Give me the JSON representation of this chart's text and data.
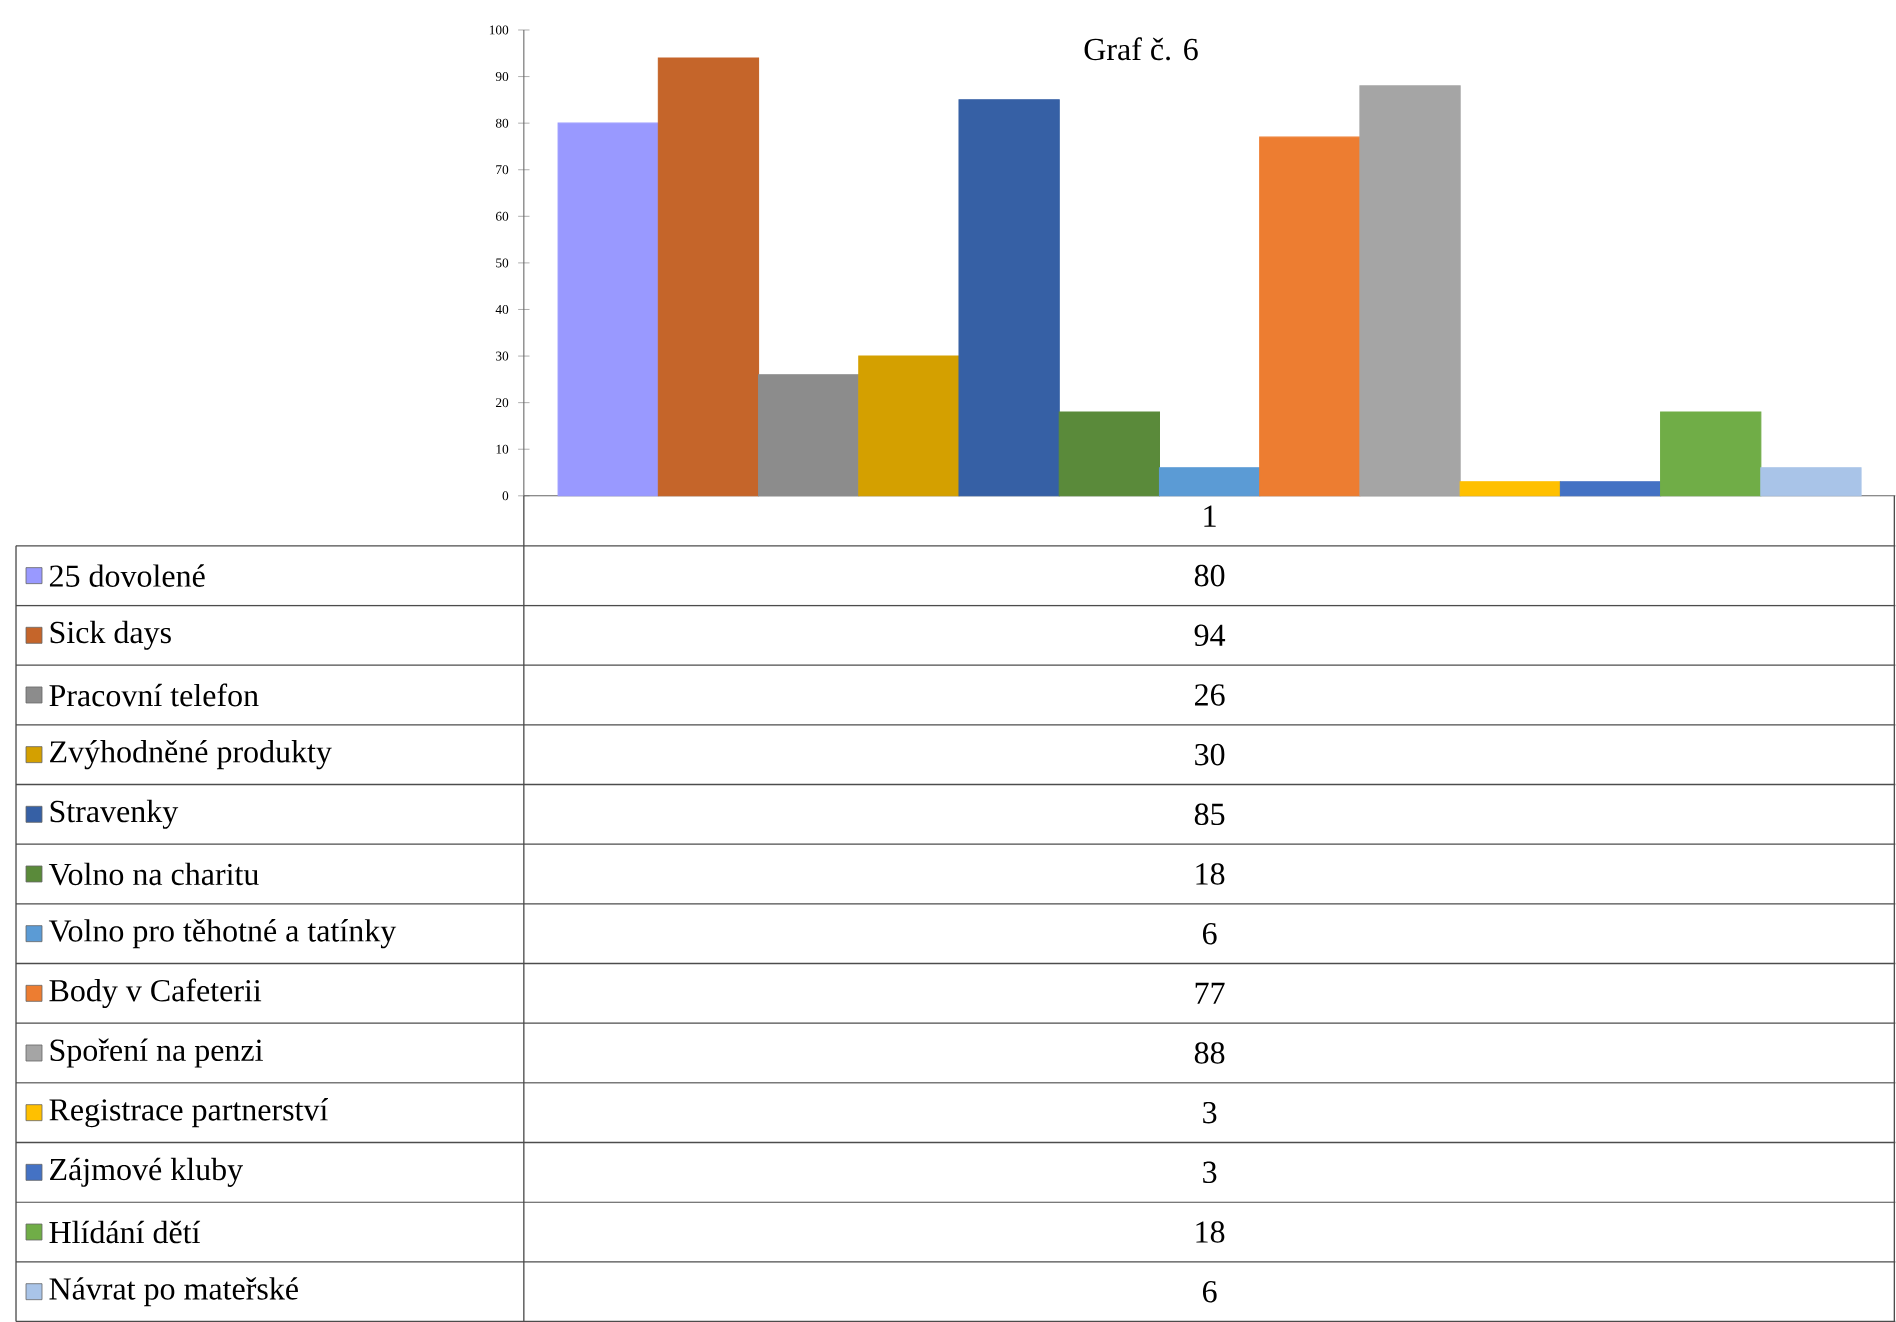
{
  "chart_data": {
    "type": "bar",
    "title": "Graf č. 6",
    "categories": [
      "1"
    ],
    "ylim": [
      0,
      100
    ],
    "yticks": [
      0,
      10,
      20,
      30,
      40,
      50,
      60,
      70,
      80,
      90,
      100
    ],
    "annotations": [
      "80",
      "94",
      "26",
      "30",
      "85",
      "18",
      "6",
      "77",
      "88",
      "3",
      "3",
      "18",
      "6"
    ],
    "legend": "bottom",
    "series": [
      {
        "name": "25 dovolené",
        "color": "#9999ff",
        "values": [
          80
        ]
      },
      {
        "name": "Sick days",
        "color": "#c5652a",
        "values": [
          94
        ]
      },
      {
        "name": "Pracovní telefon",
        "color": "#8c8c8c",
        "values": [
          26
        ]
      },
      {
        "name": "Zvýhodněné produkty",
        "color": "#d4a000",
        "values": [
          30
        ]
      },
      {
        "name": "Stravenky",
        "color": "#3660a5",
        "values": [
          85
        ]
      },
      {
        "name": "Volno na charitu",
        "color": "#5a8a3a",
        "values": [
          18
        ]
      },
      {
        "name": "Volno pro těhotné a tatínky",
        "color": "#5b9bd5",
        "values": [
          6
        ]
      },
      {
        "name": "Body v Cafeterii",
        "color": "#ed7d31",
        "values": [
          77
        ]
      },
      {
        "name": "Spoření na penzi",
        "color": "#a5a5a5",
        "values": [
          88
        ]
      },
      {
        "name": "Registrace partnerství",
        "color": "#ffc000",
        "values": [
          3
        ]
      },
      {
        "name": "Zájmové kluby",
        "color": "#4472c4",
        "values": [
          3
        ]
      },
      {
        "name": "Hlídání dětí",
        "color": "#70ad47",
        "values": [
          18
        ]
      },
      {
        "name": "Návrat po mateřské",
        "color": "#a9c4e8",
        "values": [
          6
        ]
      }
    ]
  }
}
